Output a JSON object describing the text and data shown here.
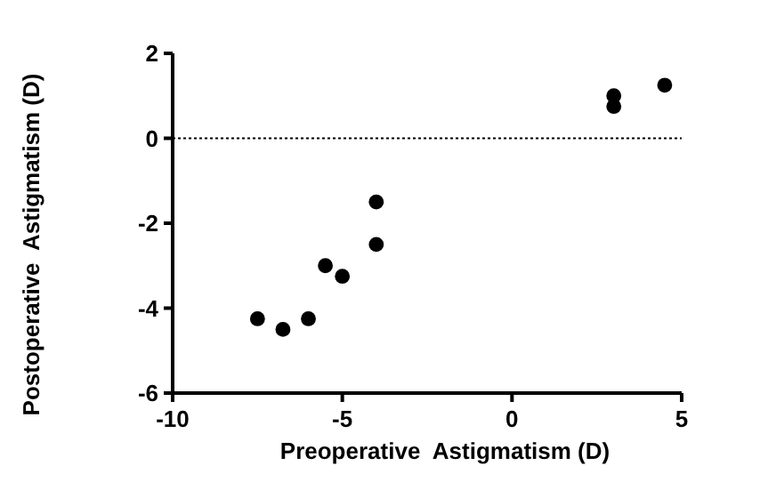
{
  "chart_data": {
    "type": "scatter",
    "xlabel": "Preoperative  Astigmatism (D)",
    "ylabel": "Postoperative  Astigmatism (D)",
    "x": [
      -7.5,
      -6.75,
      -6,
      -5.5,
      -5,
      -4,
      -4,
      3,
      3,
      4.5
    ],
    "values": [
      -4.25,
      -4.5,
      -4.25,
      -3,
      -3.25,
      -1.5,
      -2.5,
      1,
      0.75,
      1.25
    ],
    "color": "#000000",
    "marker": "circle",
    "xlim": [
      -10,
      5
    ],
    "xticks": [
      -10,
      -5,
      0,
      5
    ],
    "ylim": [
      -6,
      2
    ],
    "yticks": [
      -6,
      -4,
      -2,
      0,
      2
    ],
    "ref_lines": [
      {
        "axis": "y",
        "value": 0,
        "line_style": "dotted",
        "color": "#000000"
      }
    ]
  }
}
